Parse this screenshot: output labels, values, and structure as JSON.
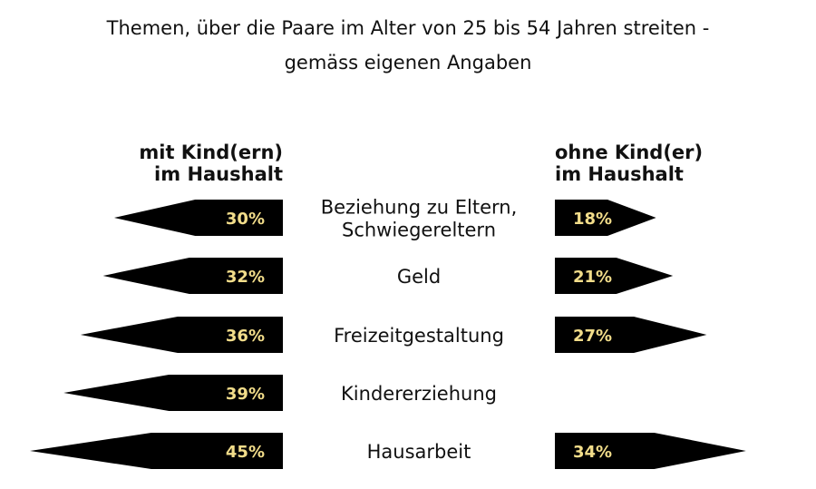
{
  "chart_data": {
    "type": "bar",
    "orientation": "horizontal-diverging",
    "title": "Themen, über die Paare im Alter von 25 bis 54 Jahren streiten -",
    "subtitle": "gemäss eigenen Angaben",
    "categories": [
      [
        "Beziehung zu Eltern,",
        "Schwiegereltern"
      ],
      [
        "Geld"
      ],
      [
        "Freizeitgestaltung"
      ],
      [
        "Kindererziehung"
      ],
      [
        "Hausarbeit"
      ]
    ],
    "series": [
      {
        "name": [
          "mit Kind(ern)",
          "im Haushalt"
        ],
        "side": "left",
        "values": [
          30,
          32,
          36,
          39,
          45
        ],
        "labels": [
          "30%",
          "32%",
          "36%",
          "39%",
          "45%"
        ]
      },
      {
        "name": [
          "ohne Kind(er)",
          "im Haushalt"
        ],
        "side": "right",
        "values": [
          18,
          21,
          27,
          null,
          34
        ],
        "labels": [
          "18%",
          "21%",
          "27%",
          "",
          "34%"
        ]
      }
    ],
    "unit": "%",
    "grid": false,
    "colors": {
      "bar": "#000000",
      "label": "#f2dd8a",
      "text": "#111111"
    }
  }
}
